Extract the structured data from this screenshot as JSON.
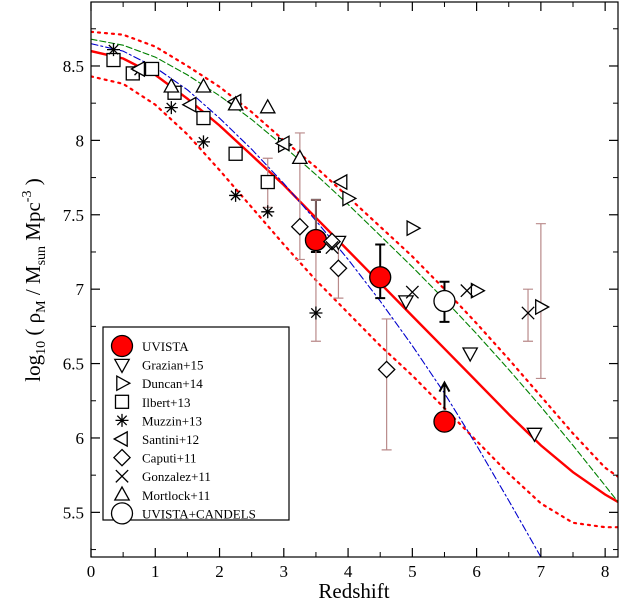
{
  "chart_data": {
    "type": "scatter",
    "title": "",
    "xlabel": "Redshift",
    "ylabel_parts": {
      "main": "log",
      "main_sub": "10",
      "open": " ( ρ",
      "rho_sub": "M",
      "mid": " / M",
      "m_sub": "sun",
      "unit": " Mpc",
      "unit_sup": "-3",
      "close": " )"
    },
    "xlim": [
      0,
      8.2
    ],
    "ylim": [
      5.2,
      8.93
    ],
    "x_ticks": [
      0,
      1,
      2,
      3,
      4,
      5,
      6,
      7,
      8
    ],
    "x_tick_labels": [
      "0",
      "1",
      "2",
      "3",
      "4",
      "5",
      "6",
      "7",
      "8"
    ],
    "y_ticks": [
      5.5,
      6,
      6.5,
      7,
      7.5,
      8,
      8.5
    ],
    "y_tick_labels": [
      "5.5",
      "6",
      "6.5",
      "7",
      "7.5",
      "8",
      "8.5"
    ],
    "grid": false,
    "legend_position": "bottom-left",
    "colors": {
      "fit": "#ff0000",
      "uvista_fill": "#ff0000",
      "errorbar": "#b98a8a",
      "green_curve": "#008000",
      "blue_curve": "#0000cc",
      "marker": "#000000"
    },
    "curves": [
      {
        "id": "best-fit",
        "style": "solid",
        "color": "#ff0000",
        "x": [
          0,
          0.5,
          1,
          1.5,
          2,
          2.5,
          3,
          3.5,
          4,
          4.5,
          5,
          5.5,
          6,
          6.5,
          7,
          7.5,
          8,
          8.2
        ],
        "y": [
          8.6,
          8.55,
          8.44,
          8.28,
          8.1,
          7.9,
          7.7,
          7.48,
          7.26,
          7.04,
          6.82,
          6.6,
          6.38,
          6.16,
          5.95,
          5.77,
          5.62,
          5.57
        ]
      },
      {
        "id": "fit-upper",
        "style": "dotted",
        "color": "#ff0000",
        "x": [
          0,
          0.5,
          1,
          1.5,
          2,
          2.5,
          3,
          3.5,
          4,
          4.5,
          5,
          5.5,
          6,
          6.5,
          7,
          7.5,
          8,
          8.2
        ],
        "y": [
          8.73,
          8.71,
          8.63,
          8.5,
          8.36,
          8.19,
          8.0,
          7.82,
          7.62,
          7.42,
          7.22,
          7.0,
          6.77,
          6.53,
          6.28,
          6.03,
          5.8,
          5.74
        ]
      },
      {
        "id": "fit-lower",
        "style": "dotted",
        "color": "#ff0000",
        "x": [
          0,
          0.5,
          1,
          1.5,
          2,
          2.5,
          3,
          3.5,
          4,
          4.5,
          5,
          5.5,
          6,
          6.5,
          7,
          7.5,
          8,
          8.2
        ],
        "y": [
          8.43,
          8.38,
          8.24,
          8.04,
          7.8,
          7.55,
          7.3,
          7.06,
          6.84,
          6.62,
          6.42,
          6.2,
          5.98,
          5.76,
          5.56,
          5.43,
          5.4,
          5.4
        ]
      },
      {
        "id": "green-model",
        "style": "dashed",
        "color": "#008000",
        "x": [
          0,
          0.5,
          1,
          1.5,
          2,
          2.5,
          3,
          3.5,
          4,
          4.5,
          5,
          5.5,
          6,
          6.5,
          7,
          7.5,
          8,
          8.2
        ],
        "y": [
          8.68,
          8.64,
          8.56,
          8.44,
          8.3,
          8.14,
          7.96,
          7.77,
          7.57,
          7.36,
          7.15,
          6.93,
          6.7,
          6.46,
          6.21,
          5.95,
          5.68,
          5.57
        ]
      },
      {
        "id": "blue-model",
        "style": "dashdot",
        "color": "#0000cc",
        "x": [
          0,
          0.5,
          1,
          1.5,
          2,
          2.5,
          3,
          3.5,
          4,
          4.5,
          5,
          5.5,
          6,
          6.5,
          7,
          7.2
        ],
        "y": [
          8.65,
          8.6,
          8.49,
          8.34,
          8.15,
          7.94,
          7.71,
          7.46,
          7.2,
          6.92,
          6.62,
          6.3,
          5.95,
          5.58,
          5.2,
          5.05
        ]
      }
    ],
    "series": [
      {
        "name": "UVISTA",
        "marker": "filled-circle",
        "points": [
          {
            "x": 3.5,
            "y": 7.33,
            "err": [
              7.25,
              7.6
            ]
          },
          {
            "x": 4.5,
            "y": 7.08,
            "err": [
              6.94,
              7.3
            ]
          },
          {
            "x": 5.5,
            "y": 6.11,
            "err": null,
            "lower_limit": true
          }
        ]
      },
      {
        "name": "Grazian+15",
        "marker": "triangle-down",
        "points": [
          {
            "x": 3.85,
            "y": 7.32
          },
          {
            "x": 4.9,
            "y": 6.92
          },
          {
            "x": 5.9,
            "y": 6.57
          },
          {
            "x": 6.9,
            "y": 6.03
          }
        ]
      },
      {
        "name": "Duncan+14",
        "marker": "triangle-right",
        "points": [
          {
            "x": 3.0,
            "y": 7.97
          },
          {
            "x": 4.0,
            "y": 7.61
          },
          {
            "x": 5.0,
            "y": 7.41
          },
          {
            "x": 6.0,
            "y": 6.99
          },
          {
            "x": 7.0,
            "y": 6.88,
            "err": [
              6.4,
              7.44
            ]
          }
        ]
      },
      {
        "name": "Ilbert+13",
        "marker": "square",
        "points": [
          {
            "x": 0.35,
            "y": 8.54
          },
          {
            "x": 0.65,
            "y": 8.45
          },
          {
            "x": 0.95,
            "y": 8.48
          },
          {
            "x": 1.3,
            "y": 8.32
          },
          {
            "x": 1.75,
            "y": 8.15
          },
          {
            "x": 2.25,
            "y": 7.91
          },
          {
            "x": 2.75,
            "y": 7.72,
            "err": [
              7.55,
              7.88
            ]
          }
        ]
      },
      {
        "name": "Muzzin+13",
        "marker": "asterisk",
        "points": [
          {
            "x": 0.35,
            "y": 8.61
          },
          {
            "x": 0.75,
            "y": 8.47
          },
          {
            "x": 1.25,
            "y": 8.22
          },
          {
            "x": 1.75,
            "y": 7.99
          },
          {
            "x": 2.25,
            "y": 7.63
          },
          {
            "x": 2.75,
            "y": 7.52
          },
          {
            "x": 3.5,
            "y": 6.84,
            "err": [
              6.65,
              7.6
            ]
          }
        ]
      },
      {
        "name": "Santini+12",
        "marker": "triangle-left",
        "points": [
          {
            "x": 0.75,
            "y": 8.48
          },
          {
            "x": 1.55,
            "y": 8.24
          },
          {
            "x": 2.25,
            "y": 8.26
          },
          {
            "x": 3.0,
            "y": 7.98
          },
          {
            "x": 3.9,
            "y": 7.72
          }
        ]
      },
      {
        "name": "Caputi+11",
        "marker": "diamond",
        "points": [
          {
            "x": 3.25,
            "y": 7.42
          },
          {
            "x": 3.75,
            "y": 7.32
          },
          {
            "x": 3.85,
            "y": 7.14,
            "err": [
              6.94,
              7.35
            ]
          },
          {
            "x": 4.6,
            "y": 6.46,
            "err": [
              5.92,
              6.8
            ]
          }
        ]
      },
      {
        "name": "Gonzalez+11",
        "marker": "cross",
        "points": [
          {
            "x": 3.75,
            "y": 7.28
          },
          {
            "x": 5.0,
            "y": 6.98
          },
          {
            "x": 5.85,
            "y": 6.99
          },
          {
            "x": 6.8,
            "y": 6.84,
            "err": [
              6.65,
              7.0
            ]
          }
        ]
      },
      {
        "name": "Mortlock+11",
        "marker": "triangle-up",
        "points": [
          {
            "x": 1.25,
            "y": 8.36
          },
          {
            "x": 1.75,
            "y": 8.36
          },
          {
            "x": 2.25,
            "y": 8.24
          },
          {
            "x": 2.75,
            "y": 8.22
          },
          {
            "x": 3.25,
            "y": 7.88,
            "err": [
              7.2,
              8.05
            ]
          }
        ]
      },
      {
        "name": "UVISTA+CANDELS",
        "marker": "open-circle",
        "points": [
          {
            "x": 5.5,
            "y": 6.92,
            "err": [
              6.78,
              7.05
            ]
          }
        ]
      }
    ]
  }
}
